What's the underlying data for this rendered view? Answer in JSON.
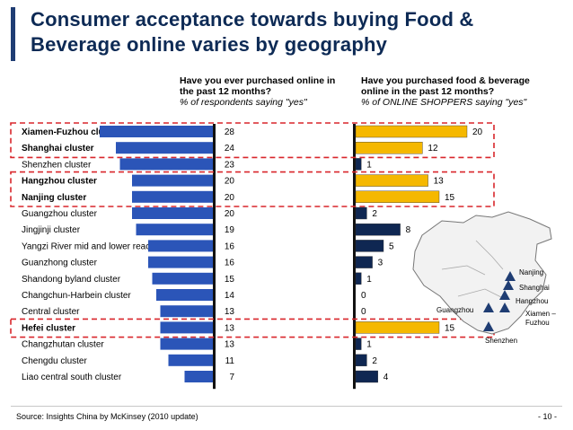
{
  "slide": {
    "title": "Consumer acceptance towards buying Food & Beverage online varies by geography",
    "left_question": "Have you ever purchased online in the past 12 months?",
    "left_sub": "% of respondents saying \"yes\"",
    "right_question": "Have you purchased food & beverage online in the past 12 months?",
    "right_sub": "% of ONLINE SHOPPERS saying \"yes\"",
    "source": "Source: Insights China by McKinsey (2010 update)",
    "page": "- 10 -"
  },
  "colors": {
    "blue": "#2b55b8",
    "yellow": "#f5b800",
    "navy": "#0f2752",
    "dash": "#d9262b"
  },
  "chart_data": {
    "type": "bar",
    "categories": [
      "Xiamen-Fuzhou cluster",
      "Shanghai cluster",
      "Shenzhen cluster",
      "Hangzhou cluster",
      "Nanjing cluster",
      "Guangzhou cluster",
      "Jingjinji cluster",
      "Yangzi River mid and lower reaches cluster",
      "Guanzhong cluster",
      "Shandong byland cluster",
      "Changchun-Harbein cluster",
      "Central cluster",
      "Hefei cluster",
      "Changzhutan cluster",
      "Chengdu cluster",
      "Liao central south cluster"
    ],
    "bold": [
      true,
      true,
      false,
      true,
      true,
      false,
      false,
      false,
      false,
      false,
      false,
      false,
      true,
      false,
      false,
      false
    ],
    "highlighted": [
      true,
      true,
      false,
      true,
      true,
      false,
      false,
      false,
      false,
      false,
      false,
      false,
      true,
      false,
      false,
      false
    ],
    "series": [
      {
        "values": [
          28,
          24,
          23,
          20,
          20,
          20,
          19,
          16,
          16,
          15,
          14,
          13,
          13,
          13,
          11,
          7
        ]
      },
      {
        "values": [
          20,
          12,
          1,
          13,
          15,
          2,
          8,
          5,
          3,
          1,
          0,
          0,
          15,
          1,
          2,
          4
        ]
      }
    ]
  },
  "map": {
    "labels": [
      "Nanjing",
      "Shanghai",
      "Hangzhou",
      "Guangzhou",
      "Xiamen –",
      "Fuzhou",
      "Shenzhen"
    ]
  }
}
